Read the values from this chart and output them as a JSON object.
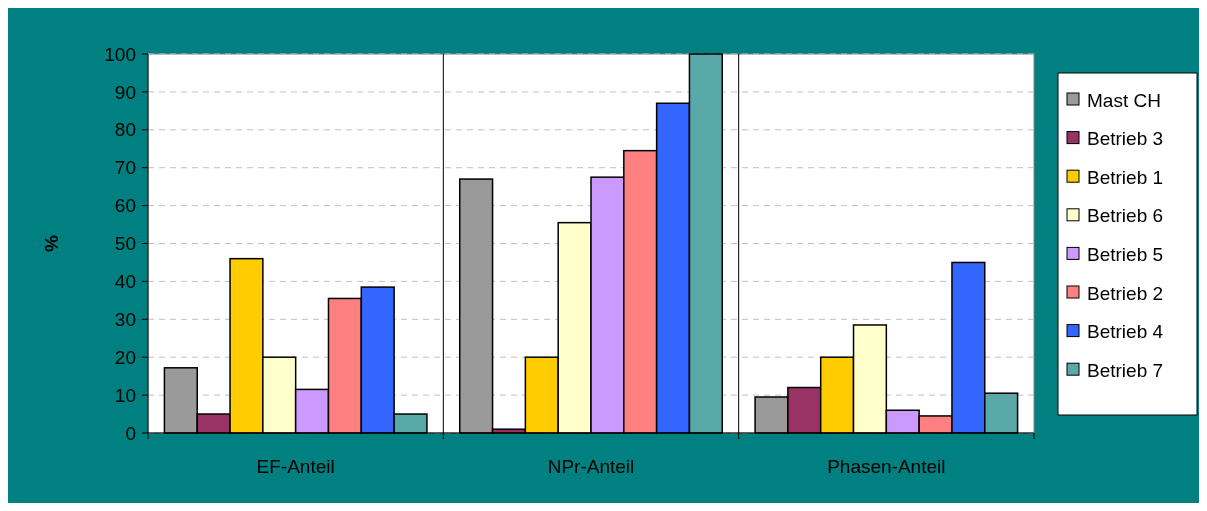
{
  "chart_data": {
    "type": "bar",
    "ylabel": "%",
    "categories": [
      "EF-Anteil",
      "NPr-Anteil",
      "Phasen-Anteil"
    ],
    "series": [
      {
        "name": "Mast CH",
        "color": "#9a9a9a",
        "values": [
          17.2,
          67,
          9.5
        ]
      },
      {
        "name": "Betrieb 3",
        "color": "#993366",
        "values": [
          5,
          1,
          12
        ]
      },
      {
        "name": "Betrieb 1",
        "color": "#ffcc00",
        "values": [
          46,
          20,
          20
        ]
      },
      {
        "name": "Betrieb 6",
        "color": "#ffffcc",
        "values": [
          20,
          55.5,
          28.5
        ]
      },
      {
        "name": "Betrieb 5",
        "color": "#cc99ff",
        "values": [
          11.5,
          67.5,
          6
        ]
      },
      {
        "name": "Betrieb 2",
        "color": "#ff8080",
        "values": [
          35.5,
          74.5,
          4.5
        ]
      },
      {
        "name": "Betrieb 4",
        "color": "#3366ff",
        "values": [
          38.5,
          87,
          45
        ]
      },
      {
        "name": "Betrieb 7",
        "color": "#5aa9a9",
        "values": [
          5,
          100,
          10.5
        ]
      }
    ],
    "ylim": [
      0,
      100
    ],
    "yticks": [
      0,
      10,
      20,
      30,
      40,
      50,
      60,
      70,
      80,
      90,
      100
    ],
    "grid": "y",
    "legend": "right"
  }
}
